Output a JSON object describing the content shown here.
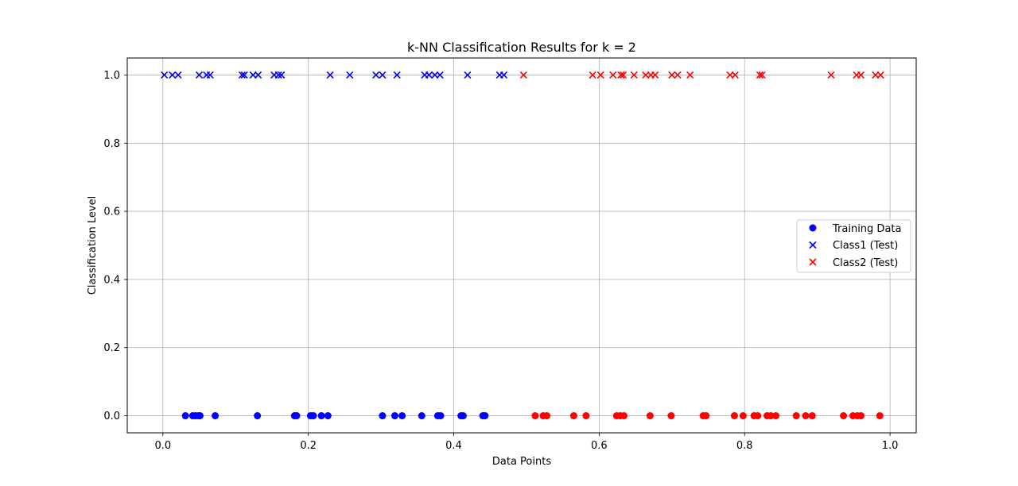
{
  "chart_data": {
    "type": "scatter",
    "title": "k-NN Classification Results for k = 2",
    "xlabel": "Data Points",
    "ylabel": "Classification Level",
    "xlim": [
      -0.049,
      1.036
    ],
    "ylim": [
      -0.05,
      1.05
    ],
    "xticks": [
      0.0,
      0.2,
      0.4,
      0.6,
      0.8,
      1.0
    ],
    "xtick_labels": [
      "0.0",
      "0.2",
      "0.4",
      "0.6",
      "0.8",
      "1.0"
    ],
    "yticks": [
      0.0,
      0.2,
      0.4,
      0.6,
      0.8,
      1.0
    ],
    "ytick_labels": [
      "0.0",
      "0.2",
      "0.4",
      "0.6",
      "0.8",
      "1.0"
    ],
    "grid": true,
    "legend": {
      "position": "center-right",
      "labels": [
        "Training Data",
        "Class1 (Test)",
        "Class2 (Test)"
      ]
    },
    "series": [
      {
        "name": "Training Data",
        "marker": "circle",
        "y_level": 0,
        "color": "#0000ff",
        "x": [
          0.031,
          0.041,
          0.045,
          0.049,
          0.051,
          0.072,
          0.13,
          0.181,
          0.184,
          0.203,
          0.207,
          0.218,
          0.227,
          0.302,
          0.319,
          0.329,
          0.356,
          0.378,
          0.382,
          0.41,
          0.413,
          0.44,
          0.443
        ]
      },
      {
        "name": "Training Data (Class 2)",
        "marker": "circle",
        "y_level": 0,
        "color": "#ff0000",
        "x": [
          0.512,
          0.523,
          0.528,
          0.565,
          0.582,
          0.624,
          0.629,
          0.634,
          0.67,
          0.699,
          0.743,
          0.747,
          0.786,
          0.798,
          0.813,
          0.818,
          0.831,
          0.836,
          0.843,
          0.871,
          0.884,
          0.893,
          0.936,
          0.949,
          0.955,
          0.96,
          0.986
        ]
      },
      {
        "name": "Class1 (Test)",
        "marker": "x",
        "y_level": 1,
        "color": "#0000ff",
        "x": [
          0.002,
          0.013,
          0.021,
          0.05,
          0.06,
          0.065,
          0.109,
          0.112,
          0.124,
          0.131,
          0.153,
          0.159,
          0.163,
          0.23,
          0.257,
          0.293,
          0.302,
          0.322,
          0.36,
          0.366,
          0.374,
          0.381,
          0.419,
          0.463,
          0.469
        ]
      },
      {
        "name": "Class2 (Test)",
        "marker": "x",
        "y_level": 1,
        "color": "#ff0000",
        "x": [
          0.496,
          0.591,
          0.602,
          0.619,
          0.63,
          0.633,
          0.648,
          0.664,
          0.671,
          0.677,
          0.7,
          0.708,
          0.725,
          0.78,
          0.787,
          0.821,
          0.824,
          0.919,
          0.954,
          0.96,
          0.98,
          0.987
        ]
      }
    ]
  }
}
